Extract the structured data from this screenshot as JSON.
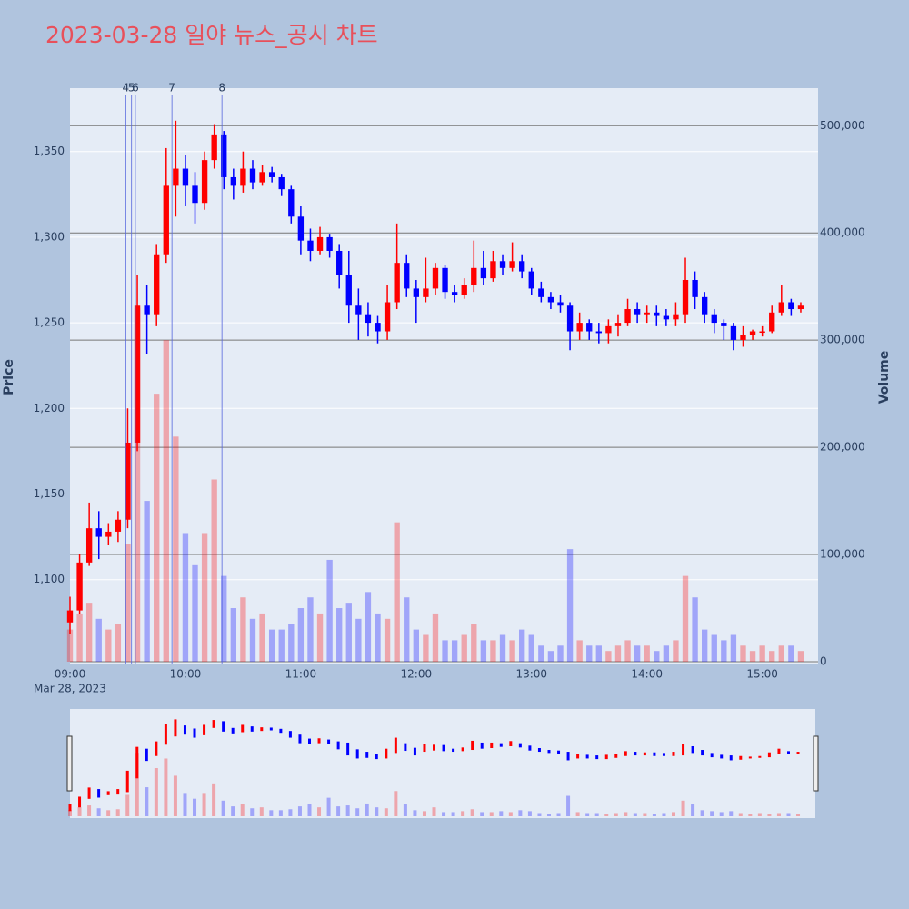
{
  "chart_data": {
    "type": "candlestick",
    "title": "2023-03-28 일야 뉴스_공시 차트",
    "ylabel": "Price",
    "y2label": "Volume",
    "increasing_color": "#ff0000",
    "decreasing_color": "#0000ff",
    "x": [
      "09:00",
      "09:05",
      "09:10",
      "09:15",
      "09:20",
      "09:25",
      "09:30",
      "09:35",
      "09:40",
      "09:45",
      "09:50",
      "09:55",
      "10:00",
      "10:05",
      "10:10",
      "10:15",
      "10:20",
      "10:25",
      "10:30",
      "10:35",
      "10:40",
      "10:45",
      "10:50",
      "10:55",
      "11:00",
      "11:05",
      "11:10",
      "11:15",
      "11:20",
      "11:25",
      "11:30",
      "11:35",
      "11:40",
      "11:45",
      "11:50",
      "11:55",
      "12:00",
      "12:05",
      "12:10",
      "12:15",
      "12:20",
      "12:25",
      "12:30",
      "12:35",
      "12:40",
      "12:45",
      "12:50",
      "12:55",
      "13:00",
      "13:05",
      "13:10",
      "13:15",
      "13:20",
      "13:25",
      "13:30",
      "13:35",
      "13:40",
      "13:45",
      "13:50",
      "13:55",
      "14:00",
      "14:05",
      "14:10",
      "14:15",
      "14:20",
      "14:25",
      "14:30",
      "14:35",
      "14:40",
      "14:45",
      "14:50",
      "14:55",
      "15:00",
      "15:05",
      "15:10",
      "15:15",
      "15:20"
    ],
    "open": [
      1075,
      1082,
      1110,
      1130,
      1125,
      1128,
      1135,
      1180,
      1260,
      1255,
      1290,
      1330,
      1340,
      1330,
      1320,
      1345,
      1360,
      1335,
      1330,
      1340,
      1332,
      1338,
      1335,
      1328,
      1312,
      1298,
      1292,
      1300,
      1292,
      1278,
      1260,
      1255,
      1250,
      1245,
      1262,
      1285,
      1270,
      1265,
      1270,
      1282,
      1268,
      1266,
      1272,
      1282,
      1276,
      1286,
      1282,
      1286,
      1280,
      1270,
      1265,
      1262,
      1260,
      1245,
      1250,
      1245,
      1244,
      1248,
      1250,
      1258,
      1255,
      1256,
      1254,
      1252,
      1255,
      1275,
      1265,
      1255,
      1250,
      1248,
      1240,
      1243,
      1245,
      1245,
      1256,
      1262,
      1258
    ],
    "high": [
      1090,
      1115,
      1145,
      1140,
      1133,
      1140,
      1200,
      1278,
      1272,
      1296,
      1352,
      1368,
      1348,
      1338,
      1350,
      1366,
      1362,
      1340,
      1350,
      1345,
      1342,
      1341,
      1337,
      1330,
      1318,
      1305,
      1306,
      1302,
      1296,
      1292,
      1270,
      1262,
      1254,
      1272,
      1308,
      1290,
      1275,
      1288,
      1285,
      1284,
      1272,
      1276,
      1298,
      1292,
      1292,
      1290,
      1297,
      1290,
      1282,
      1274,
      1268,
      1266,
      1262,
      1256,
      1252,
      1250,
      1252,
      1255,
      1264,
      1262,
      1260,
      1260,
      1258,
      1262,
      1288,
      1280,
      1268,
      1258,
      1252,
      1250,
      1248,
      1246,
      1248,
      1260,
      1272,
      1264,
      1262
    ],
    "low": [
      1068,
      1080,
      1108,
      1112,
      1120,
      1122,
      1130,
      1175,
      1232,
      1248,
      1285,
      1312,
      1318,
      1308,
      1316,
      1340,
      1328,
      1322,
      1326,
      1328,
      1330,
      1332,
      1324,
      1308,
      1290,
      1286,
      1290,
      1288,
      1270,
      1250,
      1240,
      1242,
      1238,
      1240,
      1258,
      1265,
      1250,
      1262,
      1266,
      1264,
      1262,
      1264,
      1268,
      1272,
      1274,
      1278,
      1280,
      1276,
      1266,
      1262,
      1258,
      1256,
      1234,
      1240,
      1240,
      1238,
      1238,
      1242,
      1248,
      1250,
      1250,
      1248,
      1248,
      1248,
      1250,
      1258,
      1250,
      1244,
      1240,
      1234,
      1236,
      1240,
      1242,
      1244,
      1254,
      1254,
      1256
    ],
    "close": [
      1082,
      1110,
      1130,
      1125,
      1128,
      1135,
      1180,
      1260,
      1255,
      1290,
      1330,
      1340,
      1330,
      1320,
      1345,
      1360,
      1335,
      1330,
      1340,
      1332,
      1338,
      1335,
      1328,
      1312,
      1298,
      1292,
      1300,
      1292,
      1278,
      1260,
      1255,
      1250,
      1245,
      1262,
      1285,
      1270,
      1265,
      1270,
      1282,
      1268,
      1266,
      1272,
      1282,
      1276,
      1286,
      1282,
      1286,
      1280,
      1270,
      1265,
      1262,
      1260,
      1245,
      1250,
      1245,
      1244,
      1248,
      1250,
      1258,
      1255,
      1256,
      1254,
      1252,
      1255,
      1275,
      1265,
      1255,
      1250,
      1248,
      1240,
      1243,
      1245,
      1245,
      1256,
      1262,
      1258,
      1260
    ],
    "volume": [
      30000,
      45000,
      55000,
      40000,
      30000,
      35000,
      110000,
      330000,
      150000,
      250000,
      300000,
      210000,
      120000,
      90000,
      120000,
      170000,
      80000,
      50000,
      60000,
      40000,
      45000,
      30000,
      30000,
      35000,
      50000,
      60000,
      45000,
      95000,
      50000,
      55000,
      40000,
      65000,
      45000,
      40000,
      130000,
      60000,
      30000,
      25000,
      45000,
      20000,
      20000,
      25000,
      35000,
      20000,
      20000,
      25000,
      20000,
      30000,
      25000,
      15000,
      10000,
      15000,
      105000,
      20000,
      15000,
      15000,
      10000,
      15000,
      20000,
      15000,
      15000,
      10000,
      15000,
      20000,
      80000,
      60000,
      30000,
      25000,
      20000,
      25000,
      15000,
      10000,
      15000,
      10000,
      15000,
      15000,
      10000
    ],
    "xlim": [
      "09:00",
      "15:29"
    ],
    "xticks": [
      "09:00",
      "10:00",
      "11:00",
      "12:00",
      "13:00",
      "14:00",
      "15:00"
    ],
    "xtick_sublabel": "Mar 28, 2023",
    "ylim": [
      1051,
      1387
    ],
    "yticks": [
      {
        "value": 1100,
        "label": "1,100"
      },
      {
        "value": 1150,
        "label": "1,150"
      },
      {
        "value": 1200,
        "label": "1,200"
      },
      {
        "value": 1250,
        "label": "1,250"
      },
      {
        "value": 1300,
        "label": "1,300"
      },
      {
        "value": 1350,
        "label": "1,350"
      }
    ],
    "y2lim": [
      -1700,
      535000
    ],
    "y2ticks": [
      0,
      {
        "value": 100000,
        "label": "100,000"
      },
      {
        "value": 200000,
        "label": "200,000"
      },
      {
        "value": 300000,
        "label": "300,000"
      },
      {
        "value": 400000,
        "label": "400,000"
      },
      {
        "value": 500000,
        "label": "500,000"
      }
    ],
    "annotations": [
      {
        "label": "4",
        "x": "09:29"
      },
      {
        "label": "5",
        "x": "09:32"
      },
      {
        "label": "6",
        "x": "09:34"
      },
      {
        "label": "7",
        "x": "09:53"
      },
      {
        "label": "8",
        "x": "10:19"
      }
    ],
    "grid": true
  }
}
